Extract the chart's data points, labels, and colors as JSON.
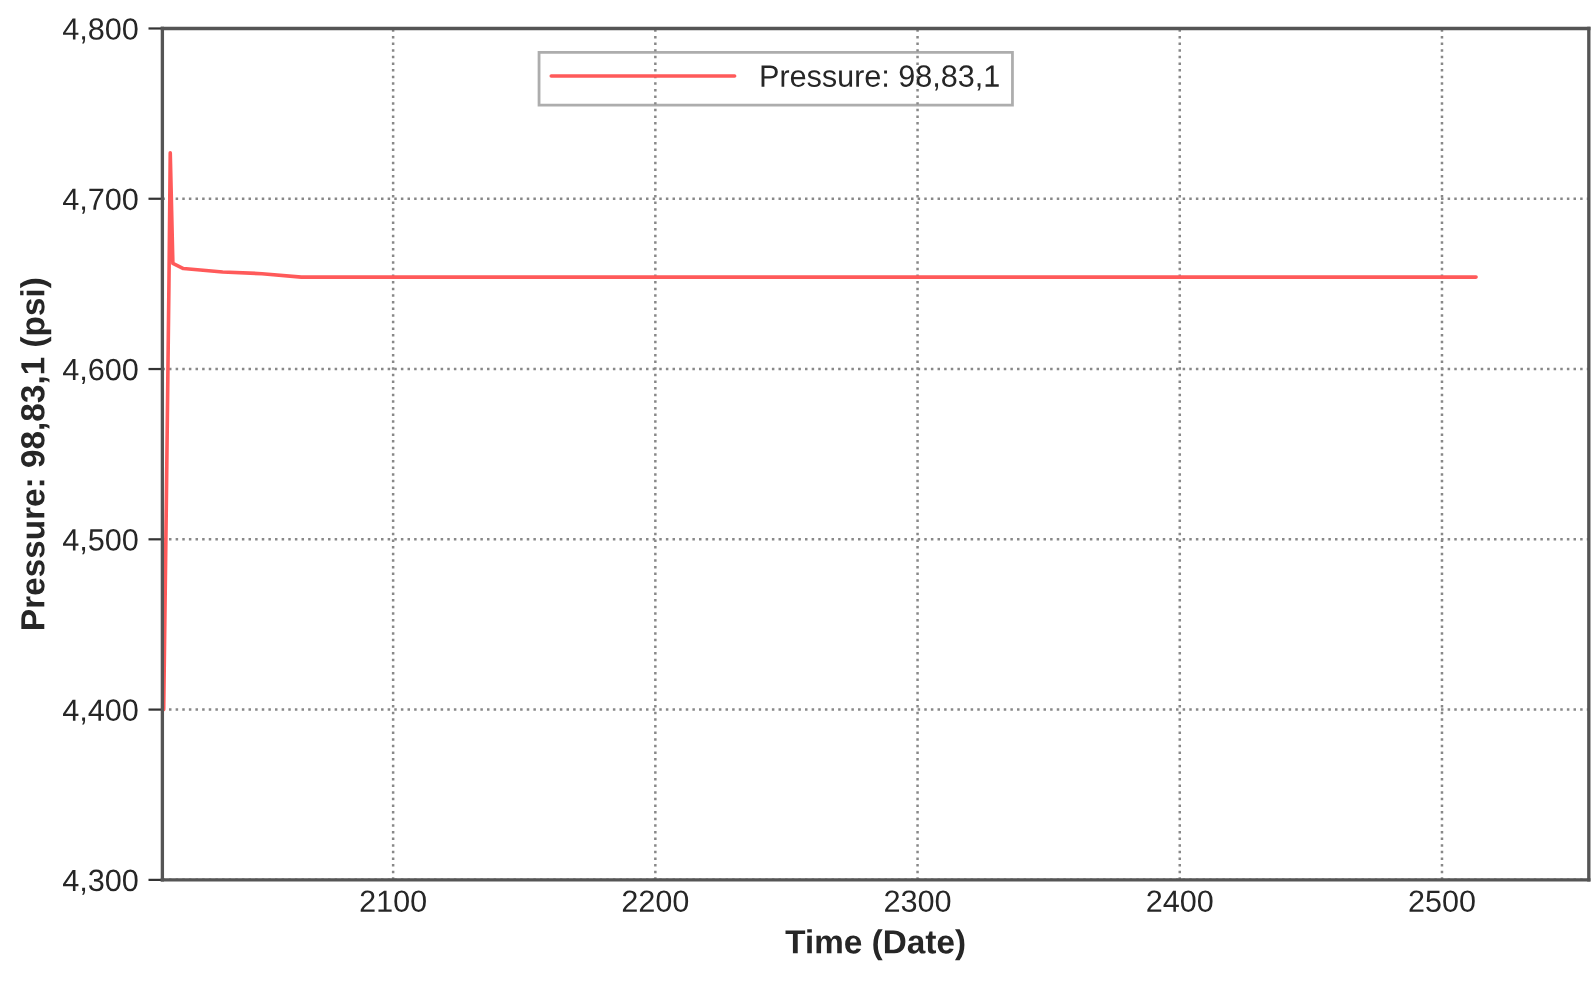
{
  "chart_data": {
    "type": "line",
    "xlabel": "Time (Date)",
    "ylabel": "Pressure: 98,83,1 (psi)",
    "series": [
      {
        "name": "Pressure: 98,83,1",
        "color": "#ff5a5a",
        "x": [
          2012.5,
          2013.5,
          2014.5,
          2015,
          2016,
          2020,
          2035,
          2050,
          2065,
          2080,
          2150,
          2300,
          2513
        ],
        "values": [
          4400,
          4520,
          4650,
          4727,
          4662,
          4659,
          4657,
          4656,
          4654,
          4654,
          4654,
          4654,
          4654
        ]
      }
    ],
    "xlim": [
      2012,
      2556
    ],
    "xticks": [
      2100,
      2200,
      2300,
      2400,
      2500
    ],
    "ylim": [
      4300,
      4800
    ],
    "yticks": [
      {
        "value": 4300,
        "label": "4,300"
      },
      {
        "value": 4400,
        "label": "4,400"
      },
      {
        "value": 4500,
        "label": "4,500"
      },
      {
        "value": 4600,
        "label": "4,600"
      },
      {
        "value": 4700,
        "label": "4,700"
      },
      {
        "value": 4800,
        "label": "4,800"
      }
    ],
    "grid": true,
    "legend": "top",
    "marker": "none",
    "line_style": "solid"
  }
}
